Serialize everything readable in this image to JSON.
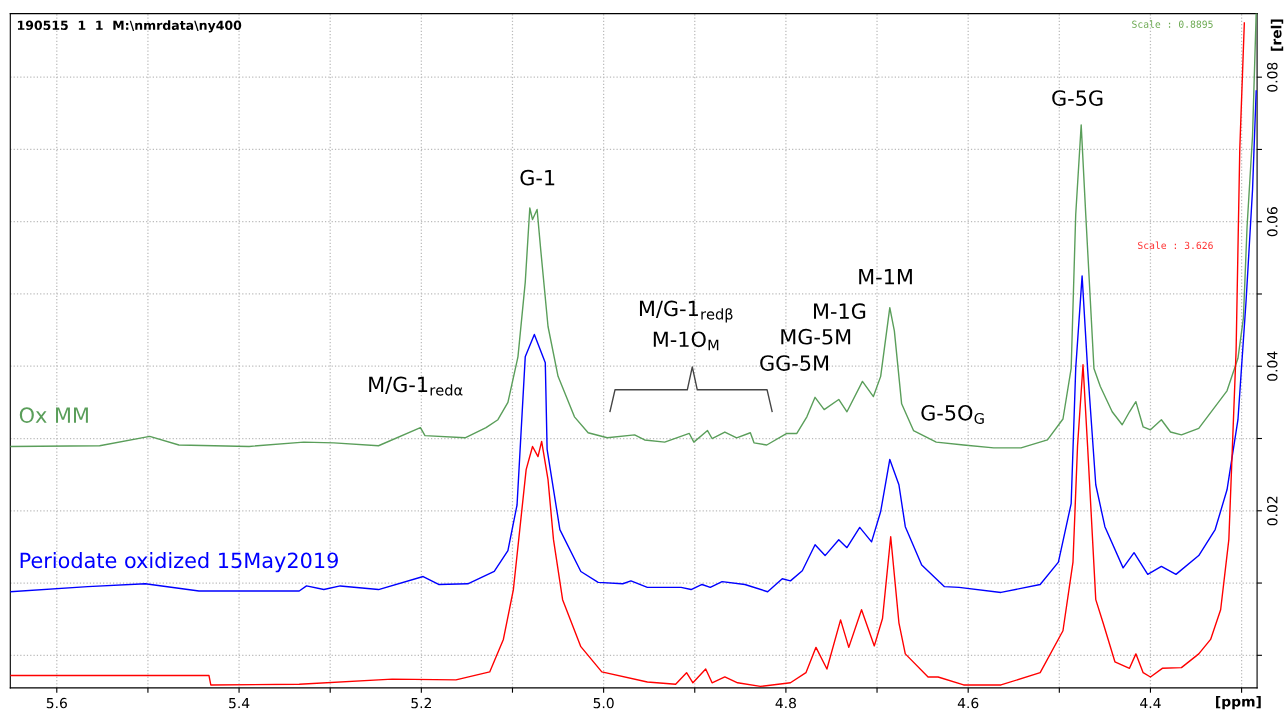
{
  "chart_data": {
    "type": "line",
    "xlabel": "[ppm]",
    "ylabel": "[rel]",
    "xlim": [
      5.651,
      4.283
    ],
    "ylim": [
      -0.0045,
      0.0888
    ],
    "xticks": [
      {
        "value": 5.6,
        "label": "5.6"
      },
      {
        "value": 5.5,
        "label": null
      },
      {
        "value": 5.4,
        "label": "5.4"
      },
      {
        "value": 5.3,
        "label": null
      },
      {
        "value": 5.2,
        "label": "5.2"
      },
      {
        "value": 5.1,
        "label": null
      },
      {
        "value": 5.0,
        "label": "5.0"
      },
      {
        "value": 4.9,
        "label": null
      },
      {
        "value": 4.8,
        "label": "4.8"
      },
      {
        "value": 4.7,
        "label": null
      },
      {
        "value": 4.6,
        "label": "4.6"
      },
      {
        "value": 4.5,
        "label": null
      },
      {
        "value": 4.4,
        "label": "4.4"
      },
      {
        "value": 4.3,
        "label": null
      }
    ],
    "yticks": [
      {
        "value": 0.0,
        "label": null
      },
      {
        "value": 0.01,
        "label": null
      },
      0.02,
      {
        "value": 0.03,
        "label": null
      },
      0.04,
      {
        "value": 0.05,
        "label": null
      },
      0.06,
      {
        "value": 0.07,
        "label": null
      },
      0.08
    ],
    "grid": true,
    "legend": false,
    "marker": "none",
    "line_style": "solid",
    "annotations": [
      "190515  1  1  M:\\nmrdata\\ny400",
      "Scale : 0.8895",
      "Scale : 3.626",
      "M/G-1$_{redα}$",
      "G-1",
      "M/G-1$_{redβ}$",
      "M-1O$_{M}$",
      "M-1M",
      "M-1G",
      "MG-5M",
      "GG-5M",
      "G-5O$_{G}$",
      "G-5G"
    ],
    "series": [
      {
        "name": "Ox MM",
        "color": "#5a9e5a",
        "x": [
          5.651,
          5.553,
          5.498,
          5.466,
          5.389,
          5.329,
          5.296,
          5.247,
          5.201,
          5.196,
          5.152,
          5.129,
          5.116,
          5.105,
          5.094,
          5.086,
          5.081,
          5.078,
          5.073,
          5.069,
          5.061,
          5.05,
          5.032,
          5.017,
          4.996,
          4.966,
          4.955,
          4.933,
          4.906,
          4.901,
          4.886,
          4.881,
          4.867,
          4.854,
          4.839,
          4.835,
          4.821,
          4.799,
          4.788,
          4.777,
          4.768,
          4.758,
          4.742,
          4.733,
          4.716,
          4.704,
          4.696,
          4.686,
          4.681,
          4.673,
          4.66,
          4.635,
          4.605,
          4.572,
          4.542,
          4.513,
          4.496,
          4.487,
          4.482,
          4.476,
          4.471,
          4.462,
          4.455,
          4.442,
          4.431,
          4.423,
          4.416,
          4.408,
          4.4,
          4.388,
          4.378,
          4.366,
          4.347,
          4.316,
          4.304,
          4.298,
          4.294,
          4.288,
          4.284
        ],
        "values": [
          0.0289,
          0.029,
          0.0303,
          0.0291,
          0.0289,
          0.0295,
          0.0294,
          0.029,
          0.0315,
          0.0304,
          0.0301,
          0.0315,
          0.0326,
          0.035,
          0.0413,
          0.0516,
          0.0619,
          0.0603,
          0.0617,
          0.0561,
          0.0455,
          0.0386,
          0.033,
          0.0308,
          0.0301,
          0.0305,
          0.0298,
          0.0295,
          0.0307,
          0.0295,
          0.0311,
          0.03,
          0.0309,
          0.0301,
          0.0308,
          0.0294,
          0.0291,
          0.0307,
          0.0307,
          0.033,
          0.0357,
          0.034,
          0.0354,
          0.0337,
          0.0379,
          0.0358,
          0.0386,
          0.0481,
          0.0449,
          0.0348,
          0.0311,
          0.0295,
          0.0291,
          0.0287,
          0.0287,
          0.0298,
          0.0327,
          0.0397,
          0.061,
          0.0734,
          0.061,
          0.0397,
          0.0372,
          0.0337,
          0.0319,
          0.0337,
          0.0351,
          0.0316,
          0.0312,
          0.0326,
          0.0309,
          0.0305,
          0.0314,
          0.0366,
          0.0411,
          0.0467,
          0.0593,
          0.0719,
          0.0888
        ]
      },
      {
        "name": "Periodate oxidized 15May2019",
        "color": "#0000ff",
        "x": [
          5.651,
          5.566,
          5.503,
          5.444,
          5.334,
          5.326,
          5.307,
          5.289,
          5.247,
          5.198,
          5.181,
          5.149,
          5.12,
          5.105,
          5.095,
          5.086,
          5.076,
          5.064,
          5.062,
          5.048,
          5.025,
          5.006,
          4.979,
          4.97,
          4.952,
          4.915,
          4.904,
          4.892,
          4.883,
          4.87,
          4.845,
          4.82,
          4.804,
          4.795,
          4.782,
          4.768,
          4.757,
          4.742,
          4.733,
          4.719,
          4.706,
          4.696,
          4.686,
          4.676,
          4.669,
          4.651,
          4.626,
          4.61,
          4.564,
          4.521,
          4.501,
          4.487,
          4.482,
          4.475,
          4.469,
          4.46,
          4.45,
          4.43,
          4.418,
          4.403,
          4.388,
          4.372,
          4.347,
          4.329,
          4.316,
          4.304,
          4.295,
          4.288,
          4.284
        ],
        "values": [
          0.0088,
          0.0095,
          0.0099,
          0.0089,
          0.0089,
          0.0096,
          0.0091,
          0.0096,
          0.0091,
          0.0109,
          0.0098,
          0.0099,
          0.0116,
          0.0145,
          0.0208,
          0.0413,
          0.0444,
          0.0405,
          0.0285,
          0.0174,
          0.0116,
          0.0101,
          0.0099,
          0.0103,
          0.0094,
          0.0094,
          0.0091,
          0.0098,
          0.0094,
          0.0102,
          0.0098,
          0.0088,
          0.0106,
          0.0103,
          0.0117,
          0.0153,
          0.0138,
          0.016,
          0.0149,
          0.0177,
          0.0157,
          0.0199,
          0.0271,
          0.0236,
          0.0178,
          0.0125,
          0.0095,
          0.0094,
          0.0087,
          0.0098,
          0.0129,
          0.021,
          0.0397,
          0.0525,
          0.0397,
          0.0236,
          0.0178,
          0.0121,
          0.0142,
          0.0112,
          0.0123,
          0.0112,
          0.0138,
          0.0174,
          0.0229,
          0.0326,
          0.0492,
          0.0644,
          0.0781
        ]
      },
      {
        "color": "#ff0000",
        "x": [
          5.651,
          5.433,
          5.431,
          5.334,
          5.232,
          5.162,
          5.125,
          5.11,
          5.099,
          5.092,
          5.085,
          5.078,
          5.072,
          5.068,
          5.061,
          5.055,
          5.045,
          5.025,
          5.002,
          4.952,
          4.921,
          4.909,
          4.902,
          4.888,
          4.881,
          4.867,
          4.853,
          4.828,
          4.795,
          4.778,
          4.767,
          4.755,
          4.74,
          4.731,
          4.717,
          4.703,
          4.694,
          4.685,
          4.676,
          4.669,
          4.644,
          4.633,
          4.605,
          4.564,
          4.521,
          4.496,
          4.485,
          4.48,
          4.474,
          4.469,
          4.46,
          4.452,
          4.439,
          4.423,
          4.416,
          4.408,
          4.4,
          4.387,
          4.366,
          4.347,
          4.334,
          4.323,
          4.314,
          4.306,
          4.302,
          4.297
        ],
        "values": [
          -0.0028,
          -0.0028,
          -0.0041,
          -0.004,
          -0.0033,
          -0.0034,
          -0.0023,
          0.0022,
          0.0091,
          0.0174,
          0.0257,
          0.0289,
          0.0275,
          0.0296,
          0.0243,
          0.016,
          0.0077,
          0.0012,
          -0.0023,
          -0.0037,
          -0.004,
          -0.0024,
          -0.0038,
          -0.0019,
          -0.0038,
          -0.003,
          -0.0038,
          -0.0043,
          -0.0038,
          -0.0024,
          0.0011,
          -0.0019,
          0.0049,
          0.0011,
          0.0063,
          0.0013,
          0.0051,
          0.0164,
          0.0045,
          0.0002,
          -0.003,
          -0.003,
          -0.0041,
          -0.0041,
          -0.0024,
          0.0034,
          0.0129,
          0.029,
          0.0402,
          0.029,
          0.0077,
          0.0045,
          -0.0009,
          -0.0018,
          0.0002,
          -0.0024,
          -0.003,
          -0.0018,
          -0.0017,
          0.0002,
          0.0022,
          0.0063,
          0.016,
          0.0423,
          0.07,
          0.0875
        ]
      }
    ]
  }
}
